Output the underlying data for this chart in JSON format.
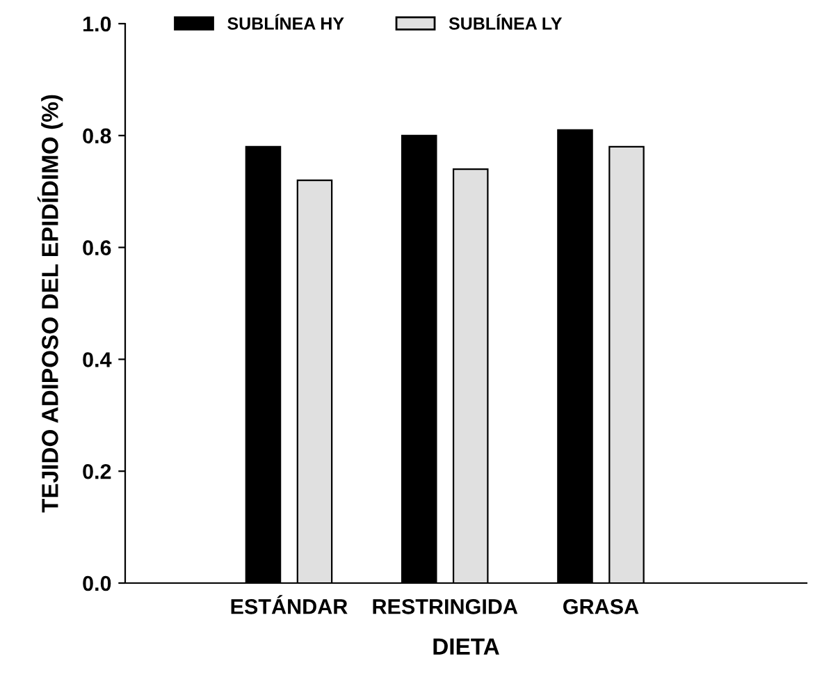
{
  "chart_data": {
    "type": "bar",
    "xlabel": "DIETA",
    "ylabel": "TEJIDO ADIPOSO DEL EPIDÍDIMO (%)",
    "categories": [
      "ESTÁNDAR",
      "RESTRINGIDA",
      "GRASA"
    ],
    "series": [
      {
        "name": "SUBLÍNEA HY",
        "color": "#000000",
        "values": [
          0.78,
          0.8,
          0.81
        ]
      },
      {
        "name": "SUBLÍNEA LY",
        "color": "#e0e0e0",
        "values": [
          0.72,
          0.74,
          0.78
        ]
      }
    ],
    "ylim": [
      0,
      1.0
    ],
    "yticks": [
      {
        "value": 0,
        "label": "0.0"
      },
      0.2,
      0.4,
      0.6,
      0.8,
      {
        "value": 1.0,
        "label": "1.0"
      }
    ],
    "grid": false,
    "legend": "top left"
  }
}
